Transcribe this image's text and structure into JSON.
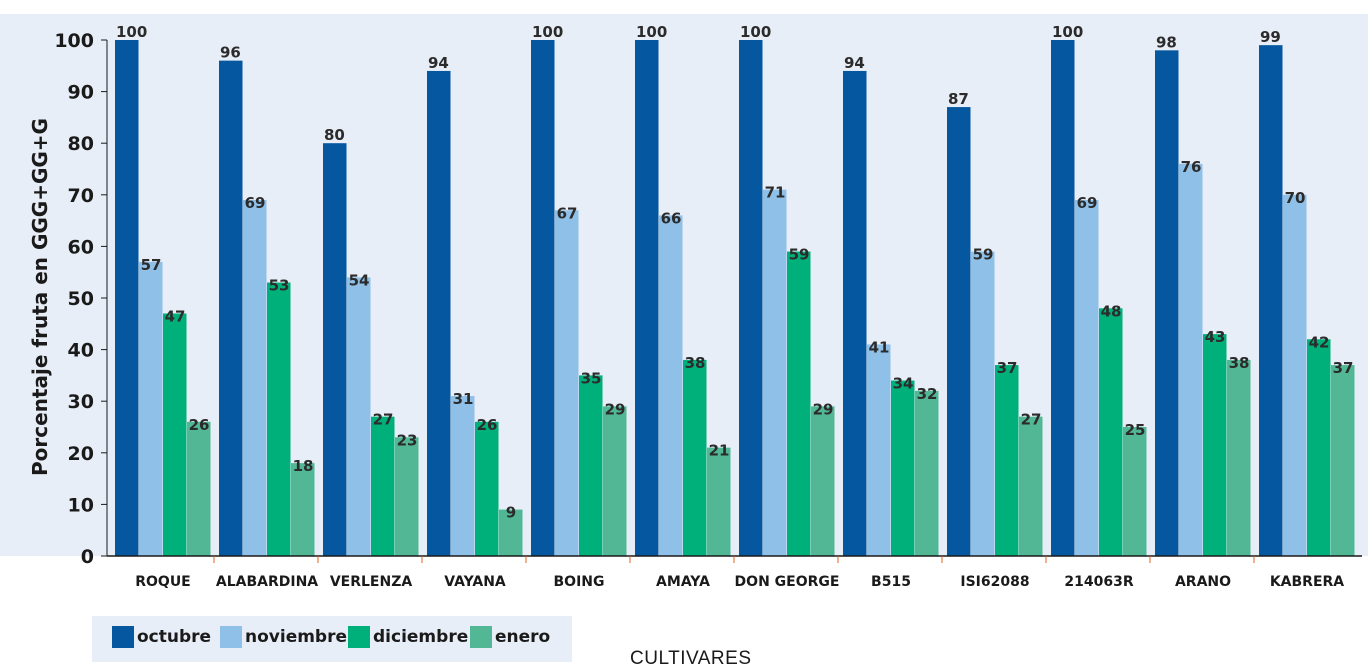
{
  "chart_data": {
    "type": "bar",
    "categories": [
      "ROQUE",
      "ALABARDINA",
      "VERLENZA",
      "VAYANA",
      "BOING",
      "AMAYA",
      "DON GEORGE",
      "B515",
      "ISI62088",
      "214063R",
      "ARANO",
      "KABRERA"
    ],
    "series": [
      {
        "name": "octubre",
        "color": "#0557a0",
        "values": [
          100,
          96,
          80,
          94,
          100,
          100,
          100,
          94,
          87,
          100,
          98,
          99
        ]
      },
      {
        "name": "noviembre",
        "color": "#8fc0e8",
        "values": [
          57,
          69,
          54,
          31,
          67,
          66,
          71,
          41,
          59,
          69,
          76,
          70
        ]
      },
      {
        "name": "diciembre",
        "color": "#00b07a",
        "values": [
          47,
          53,
          27,
          26,
          35,
          38,
          59,
          34,
          37,
          48,
          43,
          42
        ]
      },
      {
        "name": "enero",
        "color": "#52b795",
        "values": [
          26,
          18,
          23,
          9,
          29,
          21,
          29,
          32,
          27,
          25,
          38,
          37
        ]
      }
    ],
    "ylabel": "Porcentaje fruta en GGG+GG+G",
    "xlabel": "CULTIVARES",
    "ylim": [
      0,
      100
    ],
    "yticks": [
      0,
      10,
      20,
      30,
      40,
      50,
      60,
      70,
      80,
      90,
      100
    ],
    "grid": false,
    "legend_position": "bottom-left",
    "plot_background": "#e8eef7"
  }
}
